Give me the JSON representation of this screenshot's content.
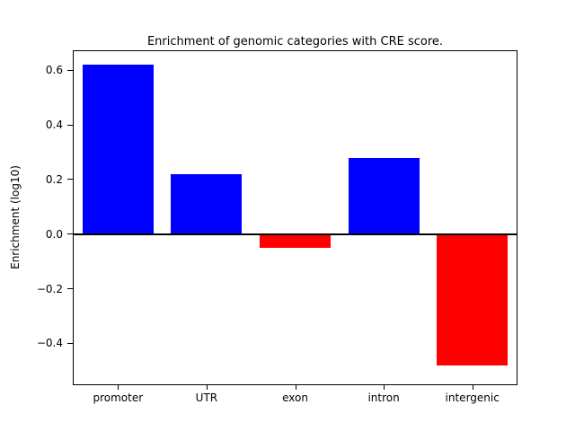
{
  "chart_data": {
    "type": "bar",
    "title": "Enrichment of genomic categories with CRE score.",
    "xlabel": "",
    "ylabel": "Enrichment (log10)",
    "categories": [
      "promoter",
      "UTR",
      "exon",
      "intron",
      "intergenic"
    ],
    "values": [
      0.62,
      0.22,
      -0.05,
      0.28,
      -0.48
    ],
    "bar_colors": [
      "#0000ff",
      "#0000ff",
      "#ff0000",
      "#0000ff",
      "#ff0000"
    ],
    "positive_color": "#0000ff",
    "negative_color": "#ff0000",
    "ylim": [
      -0.55,
      0.67
    ],
    "yticks": [
      -0.4,
      -0.2,
      0.0,
      0.2,
      0.4,
      0.6
    ],
    "zero_line_at": 0,
    "grid": false,
    "legend": null,
    "bar_width_fraction": 0.8
  }
}
